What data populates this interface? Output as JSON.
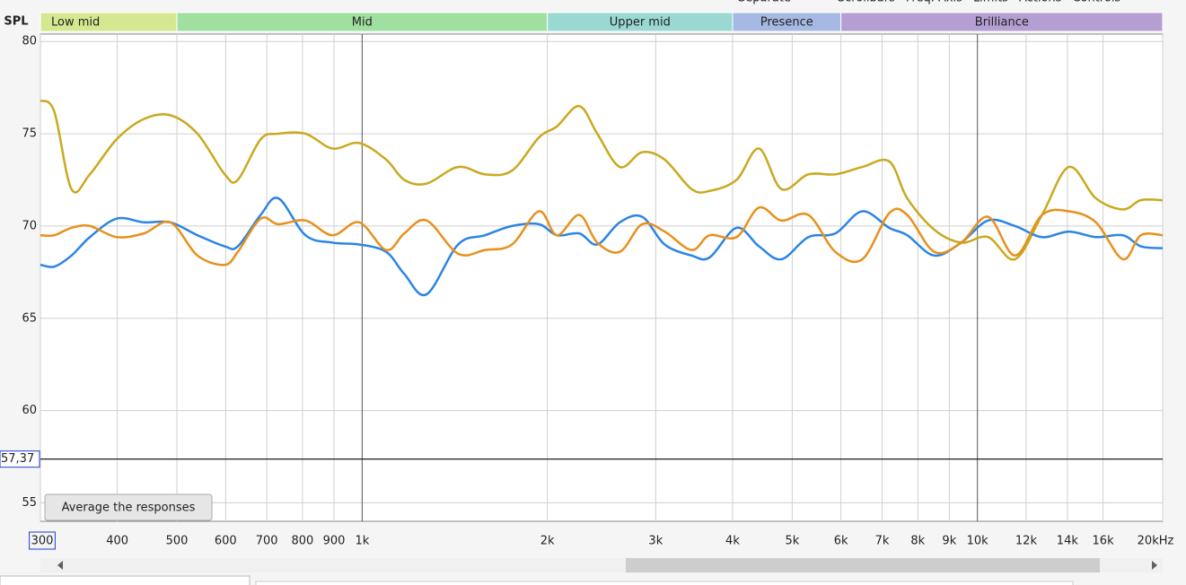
{
  "chart_data": {
    "type": "line",
    "menu": [
      "Separate",
      "Scrollbars",
      "Freq. Axis",
      "Limits",
      "Actions",
      "Controls"
    ],
    "y_label": "SPL",
    "bands": [
      {
        "name": "Low mid",
        "from": 300,
        "to": 500,
        "color": "#d6e88f"
      },
      {
        "name": "Mid",
        "from": 500,
        "to": 2000,
        "color": "#9fe0a0"
      },
      {
        "name": "Upper mid",
        "from": 2000,
        "to": 4000,
        "color": "#9ad8d2"
      },
      {
        "name": "Presence",
        "from": 4000,
        "to": 6000,
        "color": "#a6b8e4"
      },
      {
        "name": "Brilliance",
        "from": 6000,
        "to": 20000,
        "color": "#b59ed2"
      }
    ],
    "x": [
      300,
      316,
      337,
      361,
      399,
      442,
      488,
      540,
      598,
      628,
      684,
      731,
      809,
      895,
      989,
      1094,
      1171,
      1273,
      1432,
      1584,
      1752,
      1938,
      2073,
      2254,
      2411,
      2623,
      2852,
      3102,
      3431,
      3671,
      4060,
      4415,
      4802,
      5312,
      5876,
      6500,
      7190,
      7691,
      8508,
      9411,
      10408,
      11512,
      12733,
      14084,
      15578,
      17231,
      18430,
      20000
    ],
    "series": [
      {
        "color": "#c9a91f",
        "values": [
          76.8,
          76.2,
          72.0,
          72.8,
          74.7,
          75.8,
          76.0,
          75.0,
          72.8,
          72.5,
          74.7,
          75.0,
          75.0,
          74.2,
          74.5,
          73.6,
          72.5,
          72.3,
          73.2,
          72.8,
          73.0,
          74.8,
          75.4,
          76.5,
          75.0,
          73.2,
          74.0,
          73.6,
          72.0,
          71.9,
          72.5,
          74.2,
          72.0,
          72.8,
          72.8,
          73.2,
          73.5,
          71.5,
          69.8,
          69.1,
          69.4,
          68.2,
          70.6,
          73.2,
          71.5,
          70.9,
          71.4,
          71.4
        ]
      },
      {
        "color": "#2b85e4",
        "values": [
          67.9,
          67.8,
          68.4,
          69.4,
          70.4,
          70.2,
          70.2,
          69.5,
          68.9,
          68.9,
          70.6,
          71.5,
          69.5,
          69.1,
          69.0,
          68.6,
          67.4,
          66.3,
          69.0,
          69.5,
          70.0,
          70.1,
          69.5,
          69.6,
          69.0,
          70.2,
          70.5,
          69.0,
          68.4,
          68.3,
          69.9,
          68.9,
          68.2,
          69.4,
          69.6,
          70.8,
          69.9,
          69.5,
          68.4,
          69.1,
          70.3,
          70.0,
          69.4,
          69.7,
          69.4,
          69.5,
          68.9,
          68.8
        ]
      },
      {
        "color": "#e8901c",
        "values": [
          69.5,
          69.5,
          69.9,
          70.0,
          69.4,
          69.6,
          70.2,
          68.4,
          67.9,
          68.6,
          70.4,
          70.1,
          70.3,
          69.5,
          70.2,
          68.7,
          69.6,
          70.3,
          68.5,
          68.7,
          69.0,
          70.8,
          69.5,
          70.6,
          69.1,
          68.6,
          70.1,
          69.7,
          68.7,
          69.5,
          69.4,
          71.0,
          70.3,
          70.6,
          68.6,
          68.2,
          70.7,
          70.6,
          68.6,
          69.1,
          70.5,
          68.4,
          70.6,
          70.8,
          70.2,
          68.2,
          69.5,
          69.5
        ]
      }
    ],
    "xlim": [
      300,
      20000
    ],
    "xlog": true,
    "xticks": [
      {
        "value": 300,
        "label": "300"
      },
      400,
      500,
      600,
      700,
      800,
      900,
      {
        "value": 1000,
        "label": "1k"
      },
      {
        "value": 2000,
        "label": "2k"
      },
      {
        "value": 3000,
        "label": "3k"
      },
      {
        "value": 4000,
        "label": "4k"
      },
      {
        "value": 5000,
        "label": "5k"
      },
      {
        "value": 6000,
        "label": "6k"
      },
      {
        "value": 7000,
        "label": "7k"
      },
      {
        "value": 8000,
        "label": "8k"
      },
      {
        "value": 9000,
        "label": "9k"
      },
      {
        "value": 10000,
        "label": "10k"
      },
      {
        "value": 12000,
        "label": "12k"
      },
      {
        "value": 14000,
        "label": "14k"
      },
      {
        "value": 16000,
        "label": "16k"
      },
      {
        "value": 20000,
        "label": "20kHz"
      }
    ],
    "ylim": [
      54,
      80.4
    ],
    "yticks": [
      55,
      60,
      65,
      70,
      75,
      80
    ],
    "grid": true,
    "cursor": {
      "value": 57.37,
      "label": "57,37"
    },
    "button": "Average the responses"
  }
}
